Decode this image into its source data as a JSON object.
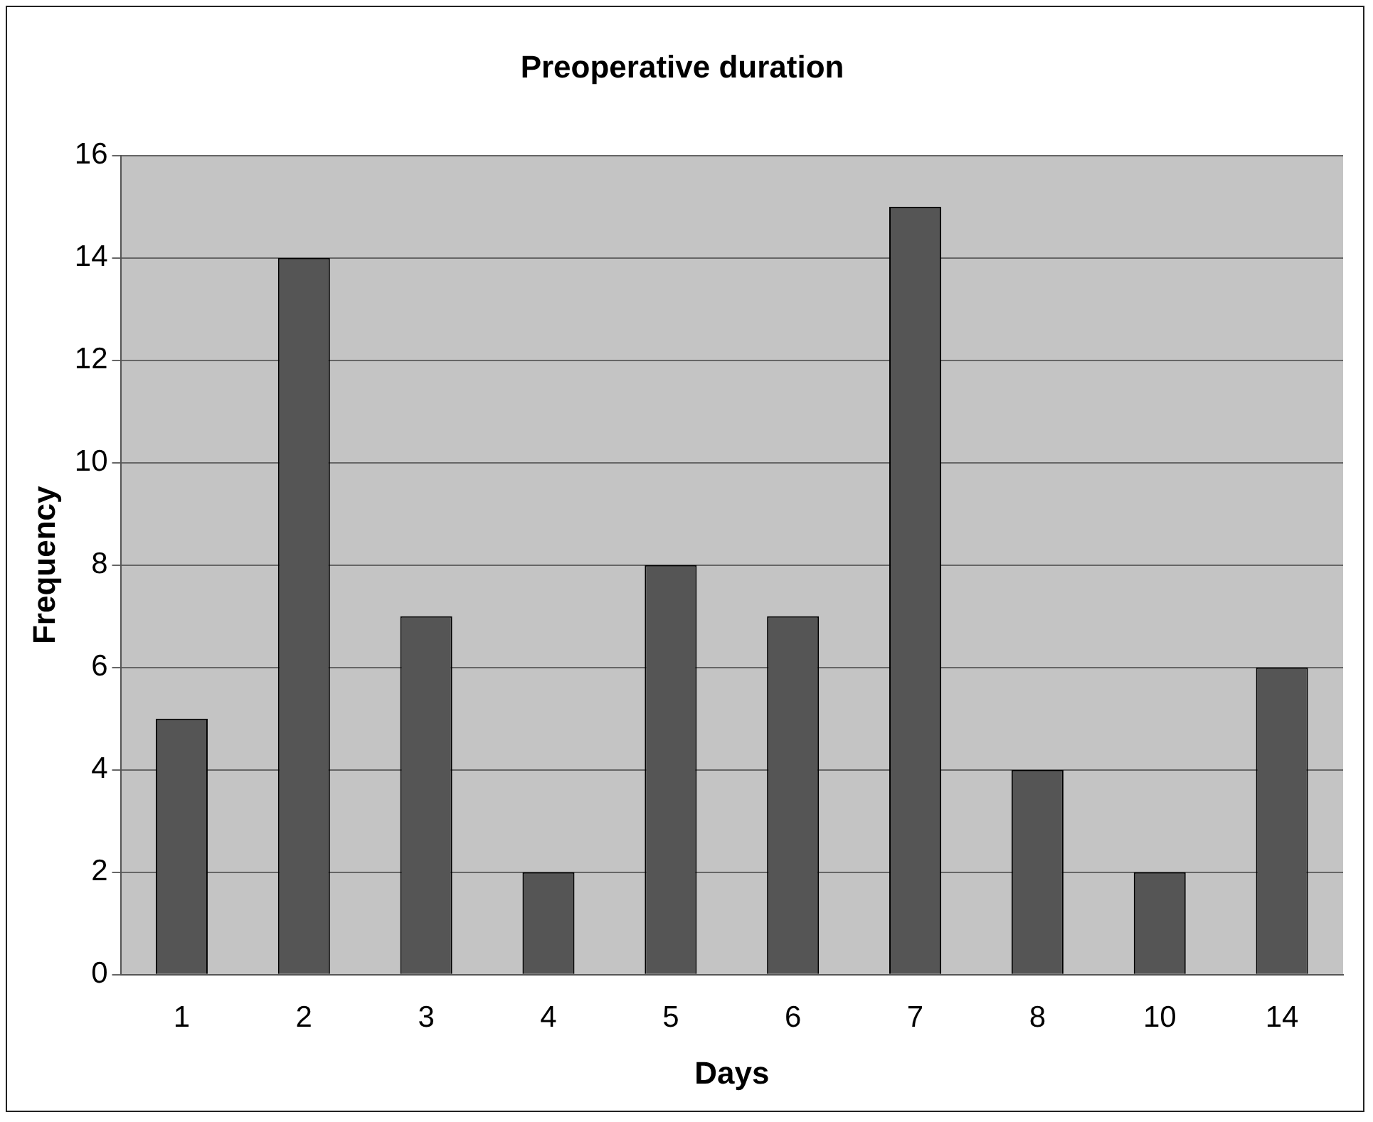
{
  "chart_data": {
    "type": "bar",
    "title": "Preoperative duration",
    "xlabel": "Days",
    "ylabel": "Frequency",
    "categories": [
      "1",
      "2",
      "3",
      "4",
      "5",
      "6",
      "7",
      "8",
      "10",
      "14"
    ],
    "values": [
      5,
      14,
      7,
      2,
      8,
      7,
      15,
      4,
      2,
      6
    ],
    "color": "#555555",
    "ylim": [
      0,
      16
    ],
    "yticks": [
      0,
      2,
      4,
      6,
      8,
      10,
      12,
      14,
      16
    ],
    "grid": "y",
    "legend": false
  }
}
